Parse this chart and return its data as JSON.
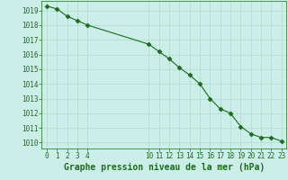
{
  "x": [
    0,
    1,
    2,
    3,
    4,
    10,
    11,
    12,
    13,
    14,
    15,
    16,
    17,
    18,
    19,
    20,
    21,
    22,
    23
  ],
  "y": [
    1019.3,
    1019.1,
    1018.6,
    1018.3,
    1018.0,
    1016.7,
    1016.2,
    1015.7,
    1015.1,
    1014.6,
    1014.0,
    1013.0,
    1012.3,
    1012.0,
    1011.1,
    1010.6,
    1010.35,
    1010.35,
    1010.1
  ],
  "line_color": "#1a6b1a",
  "marker": "D",
  "marker_size": 2.5,
  "bg_color": "#cceee8",
  "grid_color": "#aaddcc",
  "xlabel": "Graphe pression niveau de la mer (hPa)",
  "xlabel_fontsize": 7,
  "xticks": [
    0,
    1,
    2,
    3,
    4,
    10,
    11,
    12,
    13,
    14,
    15,
    16,
    17,
    18,
    19,
    20,
    21,
    22,
    23
  ],
  "yticks": [
    1010,
    1011,
    1012,
    1013,
    1014,
    1015,
    1016,
    1017,
    1018,
    1019
  ],
  "ylim": [
    1009.6,
    1019.65
  ],
  "xlim": [
    -0.5,
    23.5
  ],
  "tick_fontsize": 5.5,
  "label_color": "#1a6b1a",
  "spine_color": "#1a6b1a"
}
